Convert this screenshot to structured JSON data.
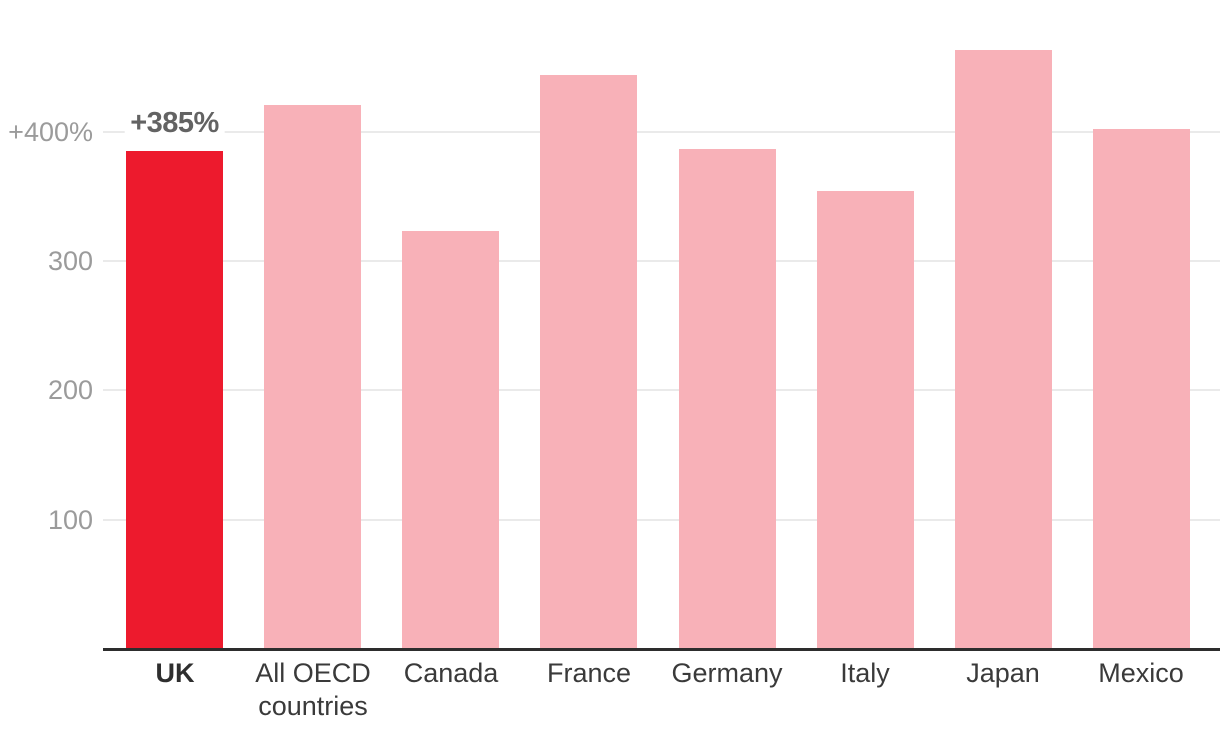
{
  "chart_data": {
    "type": "bar",
    "title": "",
    "categories": [
      "UK",
      "All OECD countries",
      "Canada",
      "France",
      "Germany",
      "Italy",
      "Japan",
      "Mexico"
    ],
    "values": [
      385,
      421,
      323,
      444,
      387,
      354,
      463,
      402
    ],
    "unit": "%",
    "highlight": {
      "index": 0,
      "label": "+385%"
    },
    "yticks": [
      {
        "value": 100,
        "label": "100"
      },
      {
        "value": 200,
        "label": "200"
      },
      {
        "value": 300,
        "label": "300"
      },
      {
        "value": 400,
        "label": "+400%"
      }
    ],
    "ylim": [
      0,
      480
    ],
    "grid": true,
    "legend": false,
    "colors": {
      "bar": "#F8B1B8",
      "highlight": "#ED1A2D",
      "axis_line": "#2D2D2D",
      "grid_line": "#EAEAEA",
      "ytick_text": "#9B9B9B",
      "xtick_text": "#3A3A3A",
      "annotation_text": "#636363",
      "background": "#FFFFFF"
    }
  }
}
